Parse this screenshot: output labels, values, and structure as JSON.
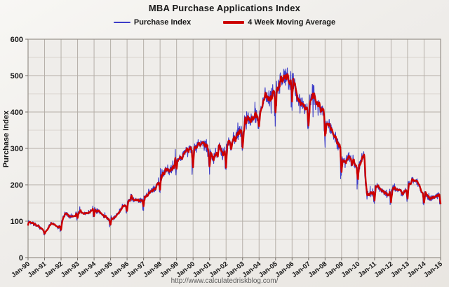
{
  "title": "MBA Purchase Applications Index",
  "legend": [
    {
      "label": "Purchase Index",
      "color": "#3c3cc8"
    },
    {
      "label": "4 Week Moving Average",
      "color": "#cc0000"
    }
  ],
  "y_axis": {
    "label": "Purchase Index",
    "min": 0,
    "max": 600,
    "major_step": 100,
    "minor_step": 50,
    "tick_labels": [
      "0",
      "100",
      "200",
      "300",
      "400",
      "500",
      "600"
    ]
  },
  "x_axis": {
    "tick_labels": [
      "Jan-90",
      "Jan-91",
      "Jan-92",
      "Jan-93",
      "Jan-94",
      "Jan-95",
      "Jan-96",
      "Jan-97",
      "Jan-98",
      "Jan-99",
      "Jan-00",
      "Jan-01",
      "Jan-02",
      "Jan-03",
      "Jan-04",
      "Jan-05",
      "Jan-06",
      "Jan-07",
      "Jan-08",
      "Jan-09",
      "Jan-10",
      "Jan-11",
      "Jan-12",
      "Jan-13",
      "Jan-14",
      "Jan-15"
    ]
  },
  "footer": {
    "url": "http://www.calculatedriskblog.com/"
  },
  "colors": {
    "background": "#efedea",
    "grid_minor": "#d8d4cf",
    "grid_major": "#b5afa8",
    "plot_border": "#97918a",
    "tick": "#76706a",
    "text": "#171717",
    "url_text": "#5a5a5a",
    "purchase_index": "#3c3cc8",
    "moving_average": "#cc0000"
  },
  "chart_data": {
    "type": "line",
    "x_min": 1990,
    "x_max": 2015,
    "y_min": 0,
    "y_max": 600,
    "x_unit": "year",
    "sampling": "weekly",
    "grid": true,
    "legend_position": "top",
    "series": [
      {
        "name": "Purchase Index",
        "color": "#3c3cc8",
        "stroke_width": 1.1,
        "derived": "moving_average_plus_weekly_noise",
        "noise_pct": 0.055,
        "spike_prob": 0.06,
        "spike_pct": 0.09,
        "holiday_dip_pct": 0.2,
        "seed": 20150101
      },
      {
        "name": "4 Week Moving Average",
        "color": "#cc0000",
        "stroke_width": 2.4,
        "points": [
          [
            1990.0,
            100
          ],
          [
            1990.2,
            96
          ],
          [
            1990.4,
            92
          ],
          [
            1990.6,
            87
          ],
          [
            1990.75,
            80
          ],
          [
            1990.9,
            75
          ],
          [
            1991.05,
            71
          ],
          [
            1991.2,
            80
          ],
          [
            1991.35,
            94
          ],
          [
            1991.5,
            91
          ],
          [
            1991.65,
            87
          ],
          [
            1991.8,
            83
          ],
          [
            1991.95,
            88
          ],
          [
            1992.1,
            108
          ],
          [
            1992.25,
            122
          ],
          [
            1992.4,
            117
          ],
          [
            1992.55,
            112
          ],
          [
            1992.7,
            113
          ],
          [
            1992.85,
            117
          ],
          [
            1993.0,
            122
          ],
          [
            1993.15,
            126
          ],
          [
            1993.3,
            120
          ],
          [
            1993.45,
            122
          ],
          [
            1993.6,
            124
          ],
          [
            1993.75,
            128
          ],
          [
            1993.9,
            134
          ],
          [
            1994.05,
            131
          ],
          [
            1994.2,
            126
          ],
          [
            1994.35,
            121
          ],
          [
            1994.5,
            116
          ],
          [
            1994.65,
            111
          ],
          [
            1994.8,
            107
          ],
          [
            1994.95,
            102
          ],
          [
            1995.1,
            105
          ],
          [
            1995.25,
            112
          ],
          [
            1995.4,
            121
          ],
          [
            1995.55,
            130
          ],
          [
            1995.7,
            138
          ],
          [
            1995.85,
            145
          ],
          [
            1996.0,
            152
          ],
          [
            1996.15,
            160
          ],
          [
            1996.3,
            164
          ],
          [
            1996.45,
            160
          ],
          [
            1996.6,
            157
          ],
          [
            1996.75,
            155
          ],
          [
            1996.9,
            160
          ],
          [
            1997.05,
            167
          ],
          [
            1997.2,
            174
          ],
          [
            1997.35,
            180
          ],
          [
            1997.5,
            184
          ],
          [
            1997.65,
            190
          ],
          [
            1997.8,
            198
          ],
          [
            1997.95,
            212
          ],
          [
            1998.1,
            228
          ],
          [
            1998.25,
            238
          ],
          [
            1998.4,
            246
          ],
          [
            1998.55,
            240
          ],
          [
            1998.7,
            247
          ],
          [
            1998.85,
            260
          ],
          [
            1999.0,
            281
          ],
          [
            1999.15,
            277
          ],
          [
            1999.3,
            272
          ],
          [
            1999.45,
            286
          ],
          [
            1999.6,
            295
          ],
          [
            1999.75,
            300
          ],
          [
            1999.9,
            295
          ],
          [
            2000.05,
            298
          ],
          [
            2000.2,
            304
          ],
          [
            2000.35,
            310
          ],
          [
            2000.5,
            314
          ],
          [
            2000.65,
            310
          ],
          [
            2000.8,
            307
          ],
          [
            2000.95,
            295
          ],
          [
            2001.1,
            281
          ],
          [
            2001.25,
            271
          ],
          [
            2001.4,
            290
          ],
          [
            2001.55,
            299
          ],
          [
            2001.7,
            304
          ],
          [
            2001.8,
            282
          ],
          [
            2001.95,
            297
          ],
          [
            2002.1,
            317
          ],
          [
            2002.25,
            309
          ],
          [
            2002.4,
            321
          ],
          [
            2002.55,
            330
          ],
          [
            2002.7,
            337
          ],
          [
            2002.85,
            346
          ],
          [
            2003.0,
            356
          ],
          [
            2003.15,
            368
          ],
          [
            2003.3,
            387
          ],
          [
            2003.45,
            377
          ],
          [
            2003.6,
            381
          ],
          [
            2003.75,
            389
          ],
          [
            2003.9,
            392
          ],
          [
            2004.05,
            397
          ],
          [
            2004.2,
            420
          ],
          [
            2004.35,
            446
          ],
          [
            2004.5,
            439
          ],
          [
            2004.65,
            444
          ],
          [
            2004.8,
            452
          ],
          [
            2004.95,
            457
          ],
          [
            2005.1,
            466
          ],
          [
            2005.25,
            480
          ],
          [
            2005.4,
            494
          ],
          [
            2005.55,
            500
          ],
          [
            2005.7,
            491
          ],
          [
            2005.85,
            483
          ],
          [
            2006.0,
            489
          ],
          [
            2006.15,
            466
          ],
          [
            2006.3,
            448
          ],
          [
            2006.45,
            428
          ],
          [
            2006.6,
            416
          ],
          [
            2006.75,
            408
          ],
          [
            2006.9,
            399
          ],
          [
            2007.05,
            424
          ],
          [
            2007.2,
            444
          ],
          [
            2007.35,
            446
          ],
          [
            2007.5,
            428
          ],
          [
            2007.65,
            417
          ],
          [
            2007.8,
            411
          ],
          [
            2007.95,
            396
          ],
          [
            2008.1,
            370
          ],
          [
            2008.25,
            358
          ],
          [
            2008.4,
            344
          ],
          [
            2008.55,
            330
          ],
          [
            2008.7,
            321
          ],
          [
            2008.85,
            305
          ],
          [
            2009.0,
            271
          ],
          [
            2009.15,
            259
          ],
          [
            2009.3,
            267
          ],
          [
            2009.45,
            283
          ],
          [
            2009.6,
            269
          ],
          [
            2009.75,
            258
          ],
          [
            2009.9,
            240
          ],
          [
            2010.05,
            254
          ],
          [
            2010.2,
            266
          ],
          [
            2010.35,
            277
          ],
          [
            2010.45,
            195
          ],
          [
            2010.55,
            167
          ],
          [
            2010.7,
            171
          ],
          [
            2010.85,
            177
          ],
          [
            2011.0,
            190
          ],
          [
            2011.15,
            198
          ],
          [
            2011.3,
            188
          ],
          [
            2011.45,
            182
          ],
          [
            2011.6,
            177
          ],
          [
            2011.75,
            172
          ],
          [
            2011.9,
            179
          ],
          [
            2012.05,
            186
          ],
          [
            2012.2,
            193
          ],
          [
            2012.35,
            188
          ],
          [
            2012.5,
            184
          ],
          [
            2012.65,
            180
          ],
          [
            2012.8,
            179
          ],
          [
            2012.95,
            194
          ],
          [
            2013.1,
            204
          ],
          [
            2013.25,
            213
          ],
          [
            2013.4,
            217
          ],
          [
            2013.55,
            205
          ],
          [
            2013.7,
            192
          ],
          [
            2013.85,
            183
          ],
          [
            2014.0,
            176
          ],
          [
            2014.15,
            171
          ],
          [
            2014.3,
            164
          ],
          [
            2014.45,
            166
          ],
          [
            2014.6,
            168
          ],
          [
            2014.75,
            171
          ],
          [
            2014.9,
            174
          ],
          [
            2015.0,
            170
          ]
        ]
      }
    ]
  }
}
